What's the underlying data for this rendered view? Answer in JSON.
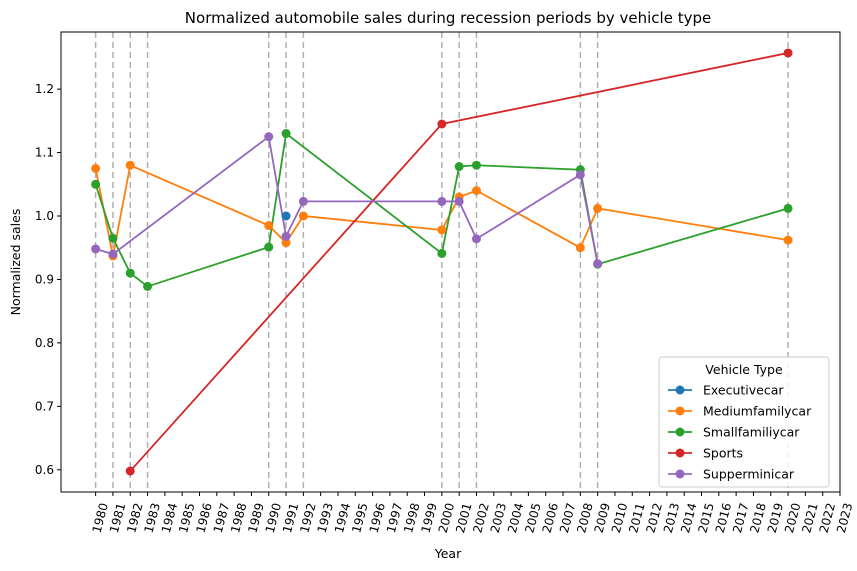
{
  "chart_data": {
    "type": "line",
    "title": "Normalized automobile sales during recession periods by vehicle type",
    "xlabel": "Year",
    "ylabel": "Normalized sales",
    "xlim": [
      1978,
      2023
    ],
    "ylim": [
      0.565,
      1.29
    ],
    "x_ticks": [
      1980,
      1981,
      1982,
      1983,
      1984,
      1985,
      1986,
      1987,
      1988,
      1989,
      1990,
      1991,
      1992,
      1993,
      1994,
      1995,
      1996,
      1997,
      1998,
      1999,
      2000,
      2001,
      2002,
      2003,
      2004,
      2005,
      2006,
      2007,
      2008,
      2009,
      2010,
      2011,
      2012,
      2013,
      2014,
      2015,
      2016,
      2017,
      2018,
      2019,
      2020,
      2021,
      2022,
      2023
    ],
    "y_ticks": [
      0.6,
      0.7,
      0.8,
      0.9,
      1.0,
      1.1,
      1.2
    ],
    "recession_years": [
      1980,
      1981,
      1982,
      1983,
      1990,
      1991,
      1992,
      2000,
      2001,
      2002,
      2008,
      2009,
      2020
    ],
    "legend": {
      "title": "Vehicle Type",
      "placement": "lower right"
    },
    "series": [
      {
        "name": "Executivecar",
        "color": "#1f77b4",
        "points": [
          [
            1991,
            1.0
          ]
        ]
      },
      {
        "name": "Mediumfamilycar",
        "color": "#ff7f0e",
        "points": [
          [
            1980,
            1.075
          ],
          [
            1981,
            0.937
          ],
          [
            1982,
            1.08
          ],
          [
            1990,
            0.985
          ],
          [
            1991,
            0.958
          ],
          [
            1992,
            1.0
          ],
          [
            2000,
            0.978
          ],
          [
            2001,
            1.03
          ],
          [
            2002,
            1.04
          ],
          [
            2008,
            0.95
          ],
          [
            2009,
            1.012
          ],
          [
            2020,
            0.962
          ]
        ]
      },
      {
        "name": "Smallfamiliycar",
        "color": "#2ca02c",
        "points": [
          [
            1980,
            1.05
          ],
          [
            1981,
            0.965
          ],
          [
            1982,
            0.91
          ],
          [
            1983,
            0.889
          ],
          [
            1990,
            0.951
          ],
          [
            1991,
            1.13
          ],
          [
            2000,
            0.941
          ],
          [
            2001,
            1.078
          ],
          [
            2002,
            1.08
          ],
          [
            2008,
            1.073
          ],
          [
            2009,
            0.924
          ],
          [
            2020,
            1.012
          ]
        ]
      },
      {
        "name": "Sports",
        "color": "#d62728",
        "points": [
          [
            1982,
            0.598
          ],
          [
            2000,
            1.145
          ],
          [
            2020,
            1.257
          ]
        ]
      },
      {
        "name": "Supperminicar",
        "color": "#9467bd",
        "points": [
          [
            1980,
            0.948
          ],
          [
            1981,
            0.94
          ],
          [
            1990,
            1.125
          ],
          [
            1991,
            0.968
          ],
          [
            1992,
            1.023
          ],
          [
            2000,
            1.023
          ],
          [
            2001,
            1.023
          ],
          [
            2002,
            0.964
          ],
          [
            2008,
            1.065
          ],
          [
            2009,
            0.925
          ]
        ]
      }
    ]
  }
}
